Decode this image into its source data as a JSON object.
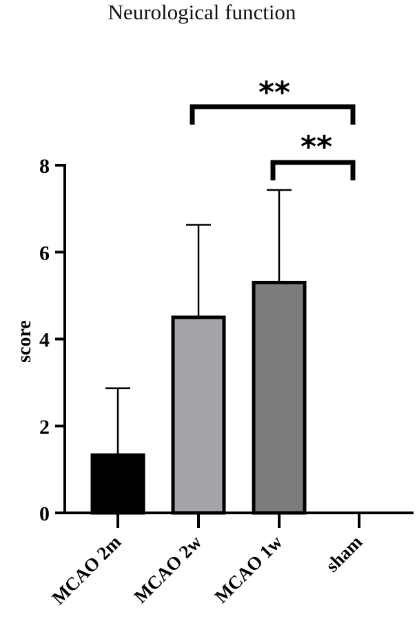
{
  "chart_data": {
    "type": "bar",
    "title": "Neurological function",
    "xlabel": "",
    "ylabel": "score",
    "ylim": [
      0,
      8
    ],
    "yticks": [
      "0",
      "2",
      "4",
      "6",
      "8"
    ],
    "categories": [
      "MCAO 2m",
      "MCAO 2w",
      "MCAO 1w",
      "sham"
    ],
    "values": [
      1.33,
      4.5,
      5.3,
      0
    ],
    "error_upper": [
      2.87,
      6.63,
      7.43,
      0
    ],
    "bar_colors": [
      "#000000",
      "#a5a4a8",
      "#7c7c7c",
      "#ffffff"
    ],
    "significance": [
      {
        "from": "MCAO 2w",
        "to": "sham",
        "label": "**"
      },
      {
        "from": "MCAO 1w",
        "to": "sham",
        "label": "**"
      }
    ],
    "grid": false,
    "legend": "none"
  }
}
